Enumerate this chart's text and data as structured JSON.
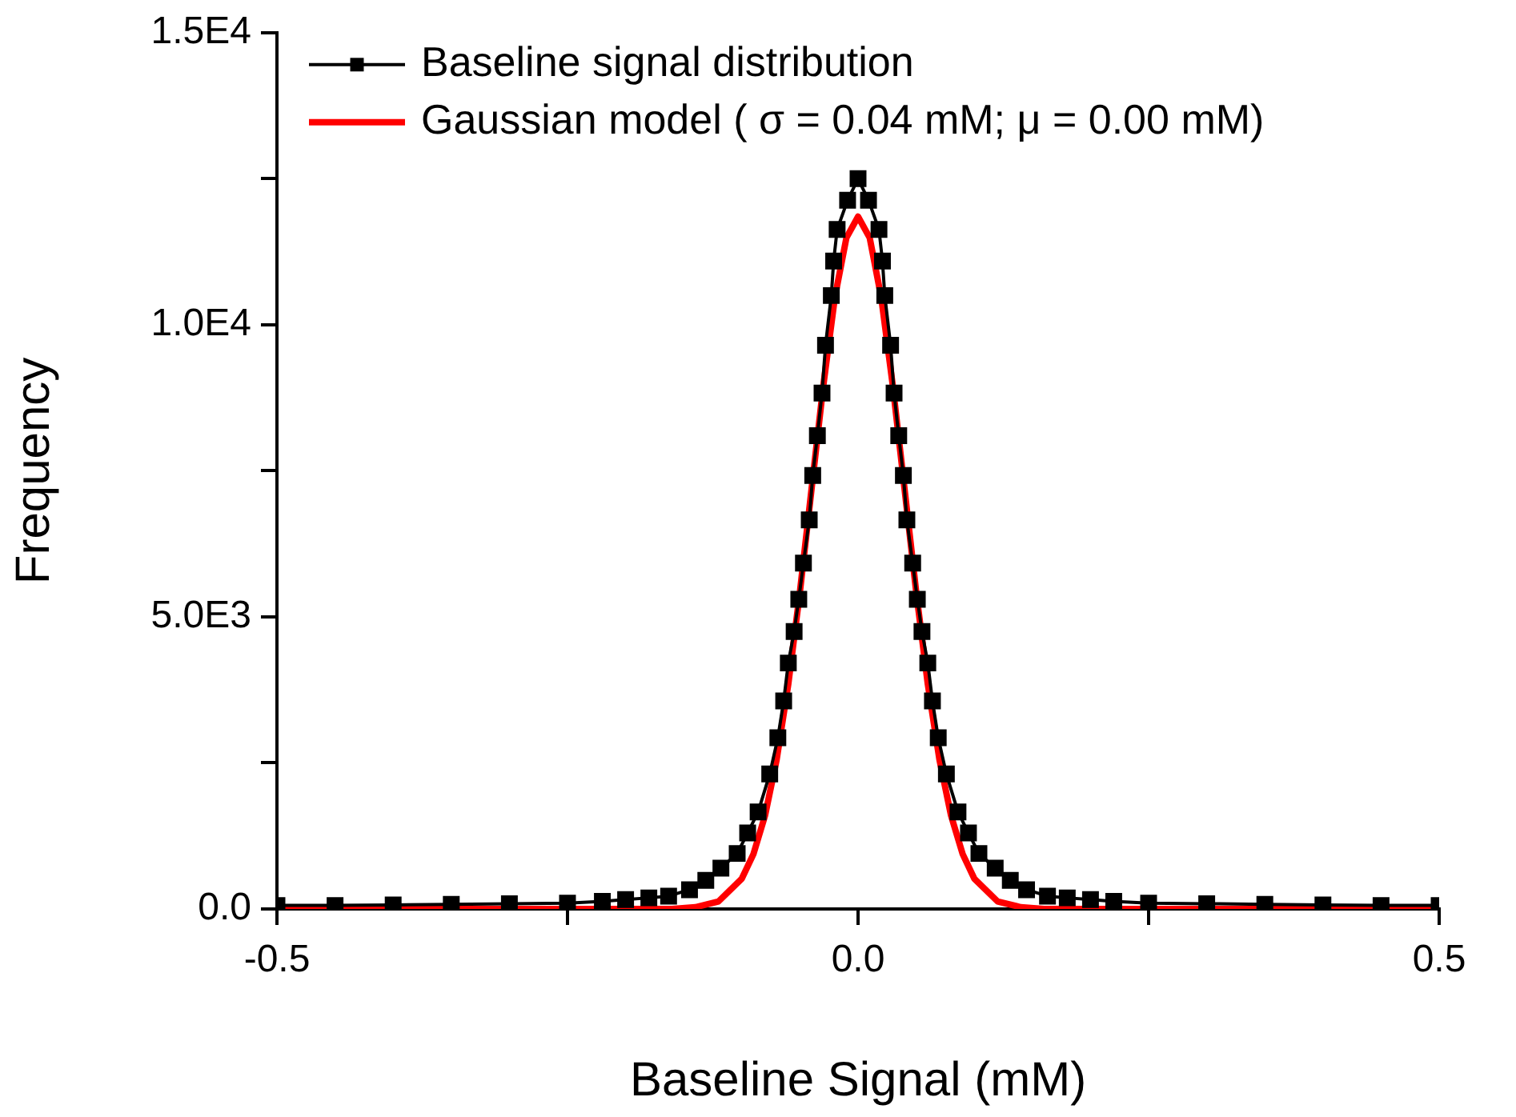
{
  "chart_data": {
    "type": "line",
    "xlabel": "Baseline Signal (mM)",
    "ylabel": "Frequency",
    "xlim": [
      -0.5,
      0.5
    ],
    "ylim": [
      0,
      15000
    ],
    "xticks": [
      -0.5,
      {
        "value": -0.25,
        "label": null
      },
      {
        "value": 0,
        "label": "0.0"
      },
      {
        "value": 0.25,
        "label": null
      },
      0.5
    ],
    "yticks": [
      {
        "value": 0,
        "label": "0.0"
      },
      {
        "value": 2500,
        "label": null
      },
      {
        "value": 5000,
        "label": "5.0E3"
      },
      {
        "value": 7500,
        "label": null
      },
      {
        "value": 10000,
        "label": "1.0E4"
      },
      {
        "value": 12500,
        "label": null
      },
      {
        "value": 15000,
        "label": "1.5E4"
      }
    ],
    "grid": false,
    "legend": "top left",
    "series": [
      {
        "name": "Baseline signal distribution",
        "color": "#000000",
        "marker": "square",
        "x": [
          -0.5,
          -0.45,
          -0.4,
          -0.35,
          -0.3,
          -0.25,
          -0.22,
          -0.2,
          -0.18,
          -0.163,
          -0.145,
          -0.131,
          -0.118,
          -0.104,
          -0.095,
          -0.086,
          -0.076,
          -0.069,
          -0.064,
          -0.06,
          -0.055,
          -0.051,
          -0.047,
          -0.042,
          -0.039,
          -0.035,
          -0.031,
          -0.028,
          -0.023,
          -0.021,
          -0.018,
          -0.009,
          0,
          0.009,
          0.018,
          0.021,
          0.023,
          0.028,
          0.031,
          0.035,
          0.039,
          0.042,
          0.047,
          0.051,
          0.055,
          0.06,
          0.064,
          0.069,
          0.076,
          0.086,
          0.095,
          0.104,
          0.118,
          0.131,
          0.145,
          0.163,
          0.18,
          0.2,
          0.22,
          0.25,
          0.3,
          0.35,
          0.4,
          0.45,
          0.5
        ],
        "values": [
          60,
          60,
          70,
          80,
          90,
          100,
          130,
          160,
          190,
          220,
          330,
          490,
          700,
          950,
          1300,
          1660,
          2310,
          2930,
          3560,
          4210,
          4750,
          5300,
          5920,
          6660,
          7420,
          8100,
          8830,
          9650,
          10500,
          11090,
          11630,
          12130,
          12500,
          12130,
          11630,
          11090,
          10500,
          9650,
          8830,
          8100,
          7420,
          6660,
          5920,
          5300,
          4750,
          4210,
          3560,
          2930,
          2310,
          1660,
          1300,
          950,
          700,
          490,
          330,
          220,
          190,
          160,
          130,
          100,
          90,
          80,
          70,
          60,
          60
        ]
      },
      {
        "name": "Gaussian model ( σ = 0.04 mM; μ = 0.00 mM)",
        "color": "#ff0000",
        "marker": "none",
        "x": [
          -0.5,
          -0.2,
          -0.16,
          -0.14,
          -0.12,
          -0.1,
          -0.09,
          -0.08,
          -0.07,
          -0.06,
          -0.05,
          -0.04,
          -0.03,
          -0.02,
          -0.01,
          0,
          0.01,
          0.02,
          0.03,
          0.04,
          0.05,
          0.06,
          0.07,
          0.08,
          0.09,
          0.1,
          0.12,
          0.14,
          0.16,
          0.2,
          0.5
        ],
        "values": [
          0,
          0,
          0,
          30,
          130,
          520,
          940,
          1600,
          2560,
          3850,
          5430,
          7190,
          8940,
          10460,
          11490,
          11850,
          11490,
          10460,
          8940,
          7190,
          5430,
          3850,
          2560,
          1600,
          940,
          520,
          130,
          30,
          0,
          0,
          0
        ]
      }
    ]
  }
}
